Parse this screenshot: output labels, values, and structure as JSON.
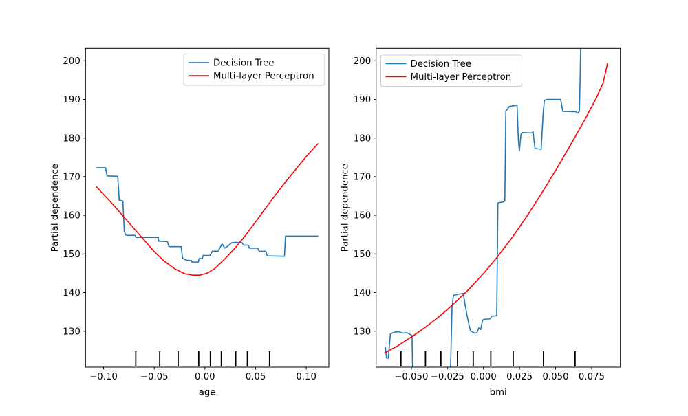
{
  "figure": {
    "background": "#ffffff",
    "title": ""
  },
  "chart_data": [
    {
      "type": "line",
      "title": "",
      "xlabel": "age",
      "ylabel": "Partial dependence",
      "xlim": [
        -0.1178,
        0.1223
      ],
      "ylim": [
        120.7,
        203.2
      ],
      "grid": false,
      "x_axis": {
        "tick_values": [
          -0.1,
          -0.05,
          0.0,
          0.05,
          0.1
        ],
        "tick_labels": [
          "−0.10",
          "−0.05",
          "0.00",
          "0.05",
          "0.10"
        ]
      },
      "y_axis": {
        "tick_values": [
          130,
          140,
          150,
          160,
          170,
          180,
          190,
          200
        ],
        "tick_labels": [
          "130",
          "140",
          "150",
          "160",
          "170",
          "180",
          "190",
          "200"
        ]
      },
      "legend": {
        "loc": "upper right"
      },
      "series": [
        {
          "name": "Decision Tree",
          "color": "#1f77b4",
          "points": [
            [
              -0.107,
              172.3
            ],
            [
              -0.098,
              172.3
            ],
            [
              -0.0965,
              170.2
            ],
            [
              -0.086,
              170.1
            ],
            [
              -0.0845,
              163.9
            ],
            [
              -0.081,
              163.7
            ],
            [
              -0.0795,
              155.8
            ],
            [
              -0.078,
              154.9
            ],
            [
              -0.0766,
              154.8
            ],
            [
              -0.0686,
              154.8
            ],
            [
              -0.068,
              154.3
            ],
            [
              -0.046,
              154.3
            ],
            [
              -0.0455,
              153.3
            ],
            [
              -0.037,
              153.2
            ],
            [
              -0.0355,
              151.9
            ],
            [
              -0.0235,
              151.9
            ],
            [
              -0.022,
              148.9
            ],
            [
              -0.0185,
              148.4
            ],
            [
              -0.0135,
              148.3
            ],
            [
              -0.0128,
              147.9
            ],
            [
              -0.0065,
              147.9
            ],
            [
              -0.0057,
              148.8
            ],
            [
              -0.0025,
              148.8
            ],
            [
              -0.0018,
              149.6
            ],
            [
              0.005,
              149.6
            ],
            [
              0.0072,
              150.7
            ],
            [
              0.0129,
              150.7
            ],
            [
              0.017,
              152.6
            ],
            [
              0.0197,
              151.5
            ],
            [
              0.0214,
              151.8
            ],
            [
              0.0265,
              152.9
            ],
            [
              0.03,
              153.0
            ],
            [
              0.0367,
              152.9
            ],
            [
              0.038,
              152.3
            ],
            [
              0.0427,
              152.3
            ],
            [
              0.044,
              151.5
            ],
            [
              0.052,
              151.5
            ],
            [
              0.0535,
              150.7
            ],
            [
              0.06,
              150.7
            ],
            [
              0.0615,
              149.5
            ],
            [
              0.0785,
              149.4
            ],
            [
              0.0795,
              154.6
            ],
            [
              0.1114,
              154.6
            ]
          ]
        },
        {
          "name": "Multi-layer Perceptron",
          "color": "#ff0000",
          "points": [
            [
              -0.107,
              167.4
            ],
            [
              -0.1,
              165.4
            ],
            [
              -0.09,
              162.6
            ],
            [
              -0.08,
              159.6
            ],
            [
              -0.07,
              156.6
            ],
            [
              -0.06,
              153.6
            ],
            [
              -0.05,
              150.6
            ],
            [
              -0.04,
              148.1
            ],
            [
              -0.03,
              146.2
            ],
            [
              -0.02,
              144.9
            ],
            [
              -0.012,
              144.5
            ],
            [
              -0.005,
              144.5
            ],
            [
              0.003,
              145.1
            ],
            [
              0.01,
              146.3
            ],
            [
              0.02,
              148.8
            ],
            [
              0.03,
              151.6
            ],
            [
              0.04,
              154.8
            ],
            [
              0.05,
              158.3
            ],
            [
              0.06,
              161.9
            ],
            [
              0.07,
              165.4
            ],
            [
              0.08,
              168.8
            ],
            [
              0.09,
              172.0
            ],
            [
              0.1,
              175.2
            ],
            [
              0.1114,
              178.5
            ]
          ]
        }
      ],
      "rug": {
        "name": "decile-marks",
        "color": "#000000",
        "positions": [
          -0.0682,
          -0.0446,
          -0.0264,
          -0.0061,
          0.0054,
          0.0162,
          0.0304,
          0.0419,
          0.0638
        ]
      }
    },
    {
      "type": "line",
      "title": "",
      "xlabel": "bmi",
      "ylabel": "Partial dependence",
      "xlim": [
        -0.0744,
        0.0949
      ],
      "ylim": [
        120.7,
        203.2
      ],
      "grid": false,
      "x_axis": {
        "tick_values": [
          -0.05,
          -0.025,
          0.0,
          0.025,
          0.05,
          0.075
        ],
        "tick_labels": [
          "−0.050",
          "−0.025",
          "0.000",
          "0.025",
          "0.050",
          "0.075"
        ]
      },
      "y_axis": {
        "tick_values": [
          130,
          140,
          150,
          160,
          170,
          180,
          190,
          200
        ],
        "tick_labels": [
          "130",
          "140",
          "150",
          "160",
          "170",
          "180",
          "190",
          "200"
        ]
      },
      "legend": {
        "loc": "upper left"
      },
      "series": [
        {
          "name": "Decision Tree",
          "color": "#1f77b4",
          "points": [
            [
              -0.068,
              125.8
            ],
            [
              -0.0672,
              123.1
            ],
            [
              -0.066,
              123.0
            ],
            [
              -0.0645,
              129.3
            ],
            [
              -0.062,
              129.7
            ],
            [
              -0.059,
              129.9
            ],
            [
              -0.056,
              129.5
            ],
            [
              -0.053,
              129.6
            ],
            [
              -0.0505,
              129.1
            ],
            [
              -0.0495,
              128.9
            ],
            [
              -0.049,
              117.5
            ],
            [
              -0.023,
              117.5
            ],
            [
              -0.0218,
              136.0
            ],
            [
              -0.0208,
              139.3
            ],
            [
              -0.017,
              139.6
            ],
            [
              -0.014,
              139.8
            ],
            [
              -0.0128,
              137.0
            ],
            [
              -0.0115,
              134.3
            ],
            [
              -0.01,
              131.6
            ],
            [
              -0.009,
              130.1
            ],
            [
              -0.006,
              129.5
            ],
            [
              -0.0045,
              129.6
            ],
            [
              -0.0032,
              130.9
            ],
            [
              -0.002,
              130.4
            ],
            [
              -0.0006,
              132.8
            ],
            [
              0.0005,
              133.1
            ],
            [
              0.0048,
              133.2
            ],
            [
              0.0056,
              133.9
            ],
            [
              0.0092,
              134.0
            ],
            [
              0.01,
              163.2
            ],
            [
              0.014,
              163.5
            ],
            [
              0.0148,
              163.7
            ],
            [
              0.0155,
              186.9
            ],
            [
              0.018,
              188.2
            ],
            [
              0.0233,
              188.5
            ],
            [
              0.0242,
              179.5
            ],
            [
              0.0249,
              176.7
            ],
            [
              0.026,
              181.0
            ],
            [
              0.027,
              181.4
            ],
            [
              0.0336,
              181.3
            ],
            [
              0.0344,
              181.6
            ],
            [
              0.0357,
              177.3
            ],
            [
              0.04,
              177.1
            ],
            [
              0.0413,
              186.0
            ],
            [
              0.0422,
              189.7
            ],
            [
              0.044,
              190.0
            ],
            [
              0.0535,
              190.0
            ],
            [
              0.055,
              186.9
            ],
            [
              0.064,
              186.8
            ],
            [
              0.0655,
              186.4
            ],
            [
              0.0665,
              187.0
            ],
            [
              0.067,
              195.0
            ],
            [
              0.0675,
              207.0
            ],
            [
              0.086,
              207.0
            ]
          ]
        },
        {
          "name": "Multi-layer Perceptron",
          "color": "#ff0000",
          "points": [
            [
              -0.0684,
              124.4
            ],
            [
              -0.06,
              126.1
            ],
            [
              -0.05,
              128.5
            ],
            [
              -0.04,
              131.1
            ],
            [
              -0.03,
              134.0
            ],
            [
              -0.02,
              137.3
            ],
            [
              -0.01,
              140.9
            ],
            [
              0.0,
              144.9
            ],
            [
              0.01,
              149.4
            ],
            [
              0.02,
              154.3
            ],
            [
              0.03,
              159.7
            ],
            [
              0.04,
              165.5
            ],
            [
              0.05,
              171.6
            ],
            [
              0.06,
              178.0
            ],
            [
              0.07,
              184.6
            ],
            [
              0.078,
              190.2
            ],
            [
              0.083,
              194.3
            ],
            [
              0.086,
              199.3
            ]
          ]
        }
      ],
      "rug": {
        "name": "decile-marks",
        "color": "#000000",
        "positions": [
          -0.0572,
          -0.0402,
          -0.0295,
          -0.018,
          -0.0071,
          0.0051,
          0.0206,
          0.0416,
          0.0635
        ]
      }
    }
  ]
}
